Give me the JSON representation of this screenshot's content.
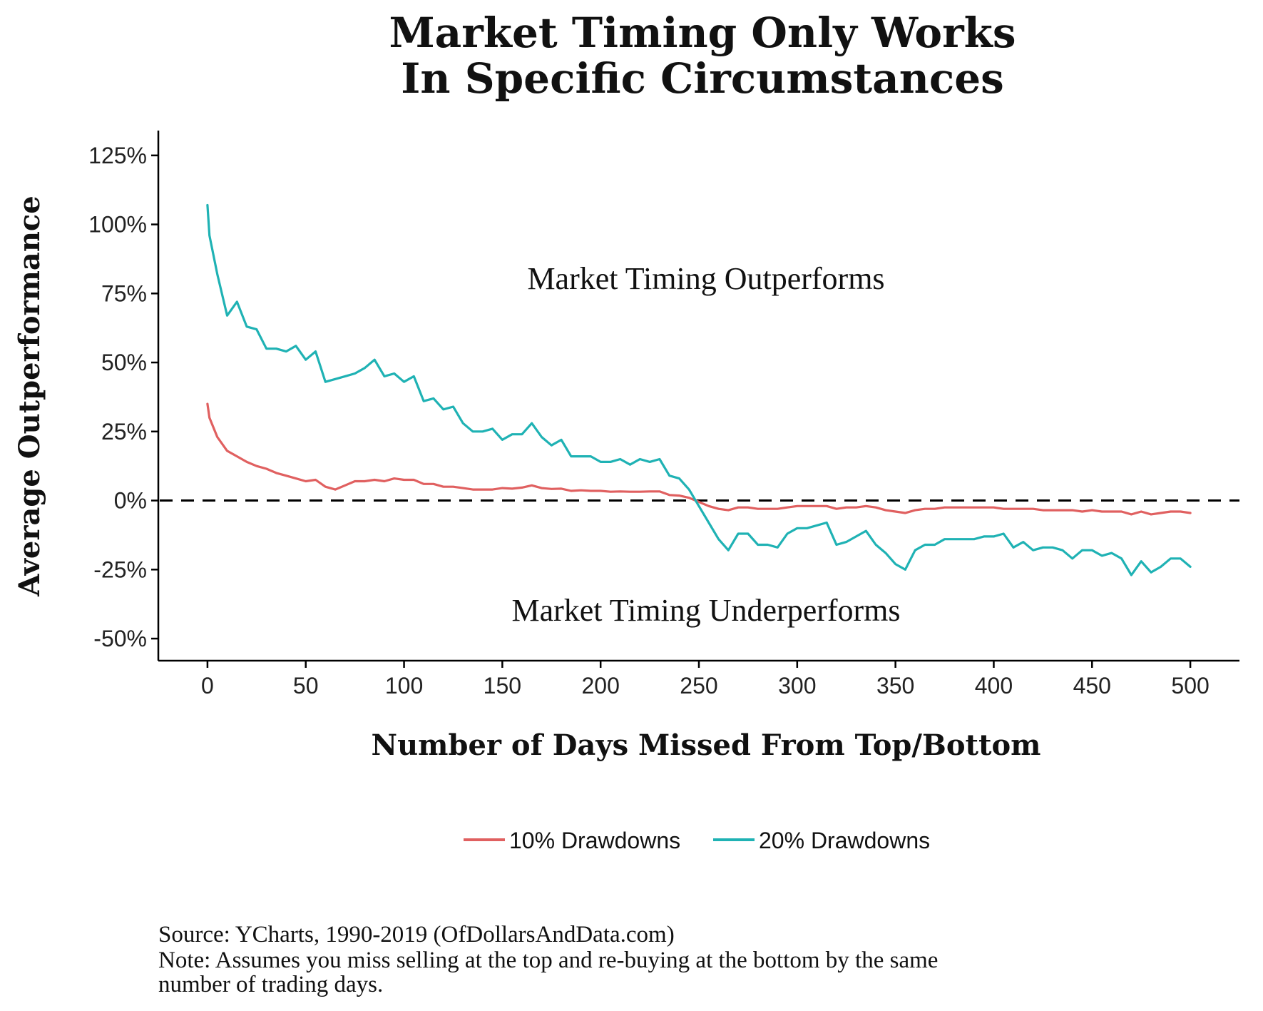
{
  "chart_data": {
    "type": "line",
    "title": [
      "Market Timing Only Works",
      "In Specific Circumstances"
    ],
    "xlabel": "Number of Days Missed From Top/Bottom",
    "ylabel": "Average Outperformance",
    "xlim": [
      -25,
      525
    ],
    "ylim": [
      -58,
      134
    ],
    "x_ticks": [
      0,
      50,
      100,
      150,
      200,
      250,
      300,
      350,
      400,
      450,
      500
    ],
    "y_ticks": [
      125,
      100,
      75,
      50,
      25,
      0,
      -25,
      -50
    ],
    "y_tick_labels": [
      "125%",
      "100%",
      "75%",
      "50%",
      "25%",
      "0%",
      "-25%",
      "-50%"
    ],
    "reference_line": {
      "y": 0,
      "style": "dashed",
      "color": "#000000"
    },
    "annotations": [
      {
        "text": "Market Timing Outperforms",
        "x": 250,
        "y": 79
      },
      {
        "text": "Market Timing Underperforms",
        "x": 250,
        "y": -40
      }
    ],
    "legend": {
      "position": "bottom"
    },
    "series": [
      {
        "name": "10% Drawdowns",
        "color": "#E06060",
        "points": [
          [
            0,
            35
          ],
          [
            1,
            30
          ],
          [
            5,
            23
          ],
          [
            10,
            18
          ],
          [
            15,
            16
          ],
          [
            20,
            14
          ],
          [
            25,
            12.5
          ],
          [
            30,
            11.5
          ],
          [
            35,
            10
          ],
          [
            40,
            9
          ],
          [
            45,
            8
          ],
          [
            50,
            7
          ],
          [
            55,
            7.5
          ],
          [
            60,
            5
          ],
          [
            65,
            4
          ],
          [
            70,
            5.5
          ],
          [
            75,
            7
          ],
          [
            80,
            7
          ],
          [
            85,
            7.5
          ],
          [
            90,
            7
          ],
          [
            95,
            8
          ],
          [
            100,
            7.5
          ],
          [
            105,
            7.5
          ],
          [
            110,
            6
          ],
          [
            115,
            6
          ],
          [
            120,
            5
          ],
          [
            125,
            5
          ],
          [
            130,
            4.5
          ],
          [
            135,
            4
          ],
          [
            140,
            4
          ],
          [
            145,
            4
          ],
          [
            150,
            4.5
          ],
          [
            155,
            4.3
          ],
          [
            160,
            4.7
          ],
          [
            165,
            5.5
          ],
          [
            170,
            4.5
          ],
          [
            175,
            4.2
          ],
          [
            180,
            4.3
          ],
          [
            185,
            3.5
          ],
          [
            190,
            3.7
          ],
          [
            195,
            3.5
          ],
          [
            200,
            3.5
          ],
          [
            205,
            3.2
          ],
          [
            210,
            3.3
          ],
          [
            215,
            3.2
          ],
          [
            220,
            3.2
          ],
          [
            225,
            3.3
          ],
          [
            230,
            3.3
          ],
          [
            235,
            2
          ],
          [
            240,
            1.8
          ],
          [
            245,
            1
          ],
          [
            250,
            -0.5
          ],
          [
            255,
            -2
          ],
          [
            260,
            -3
          ],
          [
            265,
            -3.5
          ],
          [
            270,
            -2.5
          ],
          [
            275,
            -2.5
          ],
          [
            280,
            -3
          ],
          [
            285,
            -3
          ],
          [
            290,
            -3
          ],
          [
            295,
            -2.5
          ],
          [
            300,
            -2
          ],
          [
            305,
            -2
          ],
          [
            310,
            -2
          ],
          [
            315,
            -2
          ],
          [
            320,
            -3
          ],
          [
            325,
            -2.5
          ],
          [
            330,
            -2.5
          ],
          [
            335,
            -2
          ],
          [
            340,
            -2.5
          ],
          [
            345,
            -3.5
          ],
          [
            350,
            -4
          ],
          [
            355,
            -4.5
          ],
          [
            360,
            -3.5
          ],
          [
            365,
            -3
          ],
          [
            370,
            -3
          ],
          [
            375,
            -2.5
          ],
          [
            380,
            -2.5
          ],
          [
            385,
            -2.5
          ],
          [
            390,
            -2.5
          ],
          [
            395,
            -2.5
          ],
          [
            400,
            -2.5
          ],
          [
            405,
            -3
          ],
          [
            410,
            -3
          ],
          [
            415,
            -3
          ],
          [
            420,
            -3
          ],
          [
            425,
            -3.5
          ],
          [
            430,
            -3.5
          ],
          [
            435,
            -3.5
          ],
          [
            440,
            -3.5
          ],
          [
            445,
            -4
          ],
          [
            450,
            -3.5
          ],
          [
            455,
            -4
          ],
          [
            460,
            -4
          ],
          [
            465,
            -4
          ],
          [
            470,
            -5
          ],
          [
            475,
            -4
          ],
          [
            480,
            -5
          ],
          [
            485,
            -4.5
          ],
          [
            490,
            -4
          ],
          [
            495,
            -4
          ],
          [
            500,
            -4.5
          ]
        ]
      },
      {
        "name": "20% Drawdowns",
        "color": "#1FB2B4",
        "points": [
          [
            0,
            107
          ],
          [
            1,
            96
          ],
          [
            5,
            82
          ],
          [
            10,
            67
          ],
          [
            15,
            72
          ],
          [
            20,
            63
          ],
          [
            25,
            62
          ],
          [
            30,
            55
          ],
          [
            35,
            55
          ],
          [
            40,
            54
          ],
          [
            45,
            56
          ],
          [
            50,
            51
          ],
          [
            55,
            54
          ],
          [
            60,
            43
          ],
          [
            65,
            44
          ],
          [
            70,
            45
          ],
          [
            75,
            46
          ],
          [
            80,
            48
          ],
          [
            85,
            51
          ],
          [
            90,
            45
          ],
          [
            95,
            46
          ],
          [
            100,
            43
          ],
          [
            105,
            45
          ],
          [
            110,
            36
          ],
          [
            115,
            37
          ],
          [
            120,
            33
          ],
          [
            125,
            34
          ],
          [
            130,
            28
          ],
          [
            135,
            25
          ],
          [
            140,
            25
          ],
          [
            145,
            26
          ],
          [
            150,
            22
          ],
          [
            155,
            24
          ],
          [
            160,
            24
          ],
          [
            165,
            28
          ],
          [
            170,
            23
          ],
          [
            175,
            20
          ],
          [
            180,
            22
          ],
          [
            185,
            16
          ],
          [
            190,
            16
          ],
          [
            195,
            16
          ],
          [
            200,
            14
          ],
          [
            205,
            14
          ],
          [
            210,
            15
          ],
          [
            215,
            13
          ],
          [
            220,
            15
          ],
          [
            225,
            14
          ],
          [
            230,
            15
          ],
          [
            235,
            9
          ],
          [
            240,
            8
          ],
          [
            245,
            4
          ],
          [
            250,
            -2
          ],
          [
            255,
            -8
          ],
          [
            260,
            -14
          ],
          [
            265,
            -18
          ],
          [
            270,
            -12
          ],
          [
            275,
            -12
          ],
          [
            280,
            -16
          ],
          [
            285,
            -16
          ],
          [
            290,
            -17
          ],
          [
            295,
            -12
          ],
          [
            300,
            -10
          ],
          [
            305,
            -10
          ],
          [
            310,
            -9
          ],
          [
            315,
            -8
          ],
          [
            320,
            -16
          ],
          [
            325,
            -15
          ],
          [
            330,
            -13
          ],
          [
            335,
            -11
          ],
          [
            340,
            -16
          ],
          [
            345,
            -19
          ],
          [
            350,
            -23
          ],
          [
            355,
            -25
          ],
          [
            360,
            -18
          ],
          [
            365,
            -16
          ],
          [
            370,
            -16
          ],
          [
            375,
            -14
          ],
          [
            380,
            -14
          ],
          [
            385,
            -14
          ],
          [
            390,
            -14
          ],
          [
            395,
            -13
          ],
          [
            400,
            -13
          ],
          [
            405,
            -12
          ],
          [
            410,
            -17
          ],
          [
            415,
            -15
          ],
          [
            420,
            -18
          ],
          [
            425,
            -17
          ],
          [
            430,
            -17
          ],
          [
            435,
            -18
          ],
          [
            440,
            -21
          ],
          [
            445,
            -18
          ],
          [
            450,
            -18
          ],
          [
            455,
            -20
          ],
          [
            460,
            -19
          ],
          [
            465,
            -21
          ],
          [
            470,
            -27
          ],
          [
            475,
            -22
          ],
          [
            480,
            -26
          ],
          [
            485,
            -24
          ],
          [
            490,
            -21
          ],
          [
            495,
            -21
          ],
          [
            500,
            -24
          ]
        ]
      }
    ],
    "footer": [
      "Source:  YCharts, 1990-2019 (OfDollarsAndData.com)",
      "Note: Assumes you miss selling at the top and re-buying at the bottom by the same",
      "number of trading days."
    ]
  }
}
